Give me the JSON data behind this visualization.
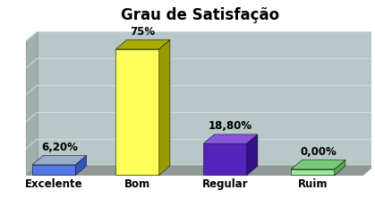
{
  "title": "Grau de Satisfação",
  "categories": [
    "Excelente",
    "Bom",
    "Regular",
    "Ruim"
  ],
  "values": [
    6.2,
    75.0,
    18.8,
    0.0
  ],
  "labels": [
    "6,20%",
    "75%",
    "18,80%",
    "0,00%"
  ],
  "bar_colors_front": [
    "#5577ee",
    "#ffff55",
    "#5522bb",
    "#99ee99"
  ],
  "bar_colors_top": [
    "#99aacc",
    "#aaaa00",
    "#8855dd",
    "#77cc77"
  ],
  "bar_colors_side": [
    "#3355bb",
    "#999900",
    "#331188",
    "#55aa55"
  ],
  "back_wall_color": "#b8c8c8",
  "left_wall_color": "#a0b0b0",
  "floor_color": "#909898",
  "grid_color": "#ccdddd",
  "title_fontsize": 12,
  "label_fontsize": 8.5,
  "cat_fontsize": 8.5,
  "ymax": 80,
  "ddx": 0.13,
  "ddy": 5.5,
  "bar_positions": [
    0.55,
    1.55,
    2.6,
    3.65
  ],
  "bar_width": 0.52
}
